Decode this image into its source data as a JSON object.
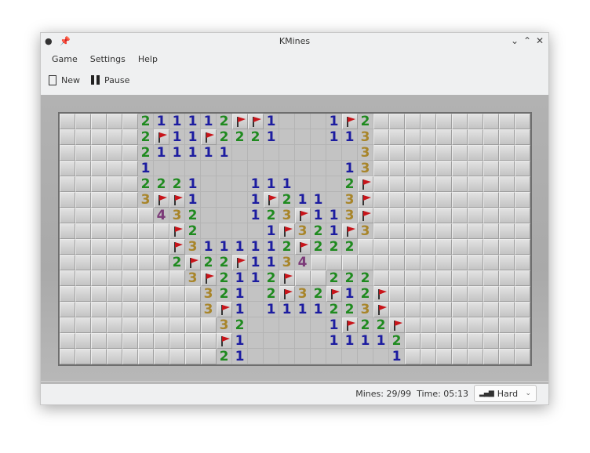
{
  "window": {
    "title": "KMines"
  },
  "menu": [
    "Game",
    "Settings",
    "Help"
  ],
  "toolbar": {
    "new_label": "New",
    "pause_label": "Pause"
  },
  "board": {
    "columns": 30,
    "rows": [
      "#####211112FF1...1F2##########",
      "#####2F11F2221...113##########",
      "#####211111........3##########",
      "#####1............13##########",
      "#####2221...111...2F##########",
      "#####3FF1...1F211.3F##########",
      "######432...123F113F##########",
      "#######F2....1F321F3##########",
      "#######F3111112F222###########",
      "#######2F22F1134##############",
      "########3F2112F##222##########",
      "#########321.2F32F12F#########",
      "#########3F1.1111223F#########",
      "##########32.....1F22F########",
      "##########F1.....11112########",
      "##########21.........1########"
    ],
    "number_colors": {
      "1": "#1c1ca0",
      "2": "#1f8a1f",
      "3": "#a8852a",
      "4": "#7b3a78"
    }
  },
  "status": {
    "mines": "Mines: 29/99",
    "time": "Time: 05:13",
    "difficulty": "Hard"
  }
}
